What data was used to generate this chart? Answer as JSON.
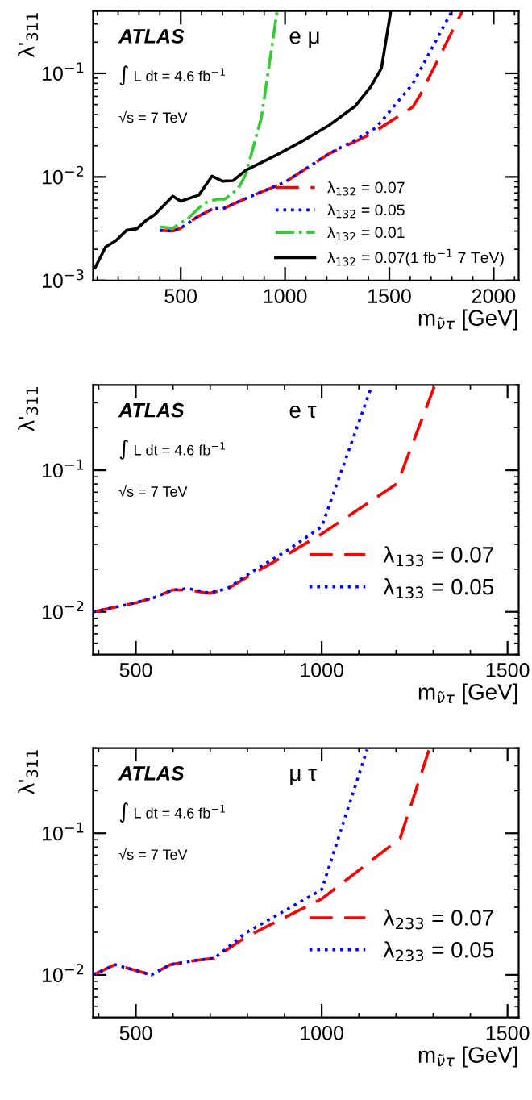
{
  "chart_data": [
    {
      "type": "line",
      "ylabel": "λ'$_{311}$",
      "xlabel": "m$_{ν̃τ}$ [GeV]",
      "log": "y",
      "legend": "bottom right",
      "grid": false,
      "annotations": [
        "ATLAS",
        "∫ L dt = 4.6 fb$^{−1}$",
        "√s = 7 TeV",
        "e μ"
      ],
      "xlim": [
        80,
        2120
      ],
      "xticks": [
        500,
        1000,
        1500,
        2000
      ],
      "ylim": [
        0.001,
        0.4
      ],
      "yticks": [
        {
          "value": 0.001,
          "label": "10$^{−3}$"
        },
        {
          "value": 0.01,
          "label": "10$^{−2}$"
        },
        {
          "value": 0.1,
          "label": "10$^{−1}$"
        }
      ],
      "series": [
        {
          "name": "λ$_{132}$ = 0.07",
          "color": "#ff0000",
          "line_style": "dashed",
          "x": [
            400,
            462,
            500,
            587,
            662,
            700,
            787,
            1000,
            1212,
            1412,
            1612,
            1650,
            1850
          ],
          "values": [
            0.00305,
            0.003,
            0.0032,
            0.0042,
            0.005,
            0.0049,
            0.0059,
            0.0089,
            0.0168,
            0.026,
            0.0473,
            0.063,
            0.4
          ]
        },
        {
          "name": "λ$_{132}$ = 0.05",
          "color": "#0000ff",
          "line_style": "dotted",
          "x": [
            400,
            462,
            500,
            587,
            662,
            700,
            787,
            1000,
            1212,
            1350,
            1437,
            1612,
            1800
          ],
          "values": [
            0.00305,
            0.003,
            0.0032,
            0.0042,
            0.005,
            0.0049,
            0.0059,
            0.0089,
            0.0168,
            0.0235,
            0.03,
            0.079,
            0.4
          ]
        },
        {
          "name": "λ$_{132}$ = 0.01",
          "color": "#33cc33",
          "line_style": "dashdot",
          "x": [
            400,
            462,
            537,
            612,
            675,
            712,
            775,
            812,
            887,
            962
          ],
          "values": [
            0.0033,
            0.0032,
            0.004,
            0.0056,
            0.0061,
            0.0061,
            0.0077,
            0.0106,
            0.0376,
            0.4
          ]
        },
        {
          "name": "λ$_{132}$ = 0.07(1 fb$^{−1}$ 7 TeV)",
          "color": "#000000",
          "line_style": "solid",
          "x": [
            90,
            140,
            190,
            240,
            290,
            337,
            375,
            462,
            500,
            587,
            650,
            700,
            750,
            812,
            962,
            1087,
            1212,
            1337,
            1412,
            1462,
            1507
          ],
          "values": [
            0.00133,
            0.00211,
            0.00243,
            0.00305,
            0.00316,
            0.00385,
            0.00432,
            0.00653,
            0.00582,
            0.00668,
            0.0102,
            0.0091,
            0.0092,
            0.0116,
            0.0164,
            0.0224,
            0.0316,
            0.0484,
            0.075,
            0.112,
            0.4
          ]
        }
      ]
    },
    {
      "type": "line",
      "ylabel": "λ'$_{311}$",
      "xlabel": "m$_{ν̃τ}$ [GeV]",
      "log": "y",
      "legend": "bottom right",
      "grid": false,
      "annotations": [
        "ATLAS",
        "∫ L dt = 4.6 fb$^{−1}$",
        "√s = 7 TeV",
        "e τ"
      ],
      "xlim": [
        385,
        1530
      ],
      "xticks": [
        500,
        1000,
        1500
      ],
      "ylim": [
        0.005,
        0.4
      ],
      "yticks": [
        {
          "value": 0.01,
          "label": "10$^{−2}$"
        },
        {
          "value": 0.1,
          "label": "10$^{−1}$"
        }
      ],
      "series": [
        {
          "name": "λ$_{133}$ = 0.07",
          "color": "#ff0000",
          "line_style": "dashed",
          "x": [
            385,
            500,
            549,
            599,
            641,
            697,
            746,
            810,
            908,
            1000,
            1204,
            1303
          ],
          "values": [
            0.01,
            0.0116,
            0.0126,
            0.0143,
            0.0143,
            0.0135,
            0.0145,
            0.0183,
            0.0255,
            0.0355,
            0.081,
            0.39
          ]
        },
        {
          "name": "λ$_{133}$ = 0.05",
          "color": "#0000ff",
          "line_style": "dotted",
          "x": [
            385,
            500,
            549,
            599,
            641,
            697,
            746,
            810,
            908,
            1000,
            1134
          ],
          "values": [
            0.01,
            0.0116,
            0.0126,
            0.0143,
            0.0146,
            0.0136,
            0.0146,
            0.019,
            0.0272,
            0.04,
            0.39
          ]
        }
      ]
    },
    {
      "type": "line",
      "ylabel": "λ'$_{311}$",
      "xlabel": "m$_{ν̃τ}$ [GeV]",
      "log": "y",
      "legend": "bottom right",
      "grid": false,
      "annotations": [
        "ATLAS",
        "∫ L dt = 4.6 fb$^{−1}$",
        "√s = 7 TeV",
        "μ τ"
      ],
      "xlim": [
        385,
        1530
      ],
      "xticks": [
        500,
        1000,
        1500
      ],
      "ylim": [
        0.005,
        0.4
      ],
      "yticks": [
        {
          "value": 0.01,
          "label": "10$^{−2}$"
        },
        {
          "value": 0.1,
          "label": "10$^{−1}$"
        }
      ],
      "series": [
        {
          "name": "λ$_{233}$ = 0.07",
          "color": "#ff0000",
          "line_style": "dashed",
          "x": [
            385,
            444,
            542,
            592,
            655,
            711,
            796,
            1000,
            1211,
            1289
          ],
          "values": [
            0.01,
            0.0118,
            0.01,
            0.0118,
            0.0126,
            0.0131,
            0.0185,
            0.0344,
            0.092,
            0.39
          ]
        },
        {
          "name": "λ$_{233}$ = 0.05",
          "color": "#0000ff",
          "line_style": "dotted",
          "x": [
            385,
            444,
            542,
            592,
            655,
            711,
            796,
            1000,
            1122
          ],
          "values": [
            0.01,
            0.0118,
            0.01,
            0.0118,
            0.0126,
            0.0131,
            0.0198,
            0.04,
            0.39
          ]
        }
      ]
    }
  ]
}
